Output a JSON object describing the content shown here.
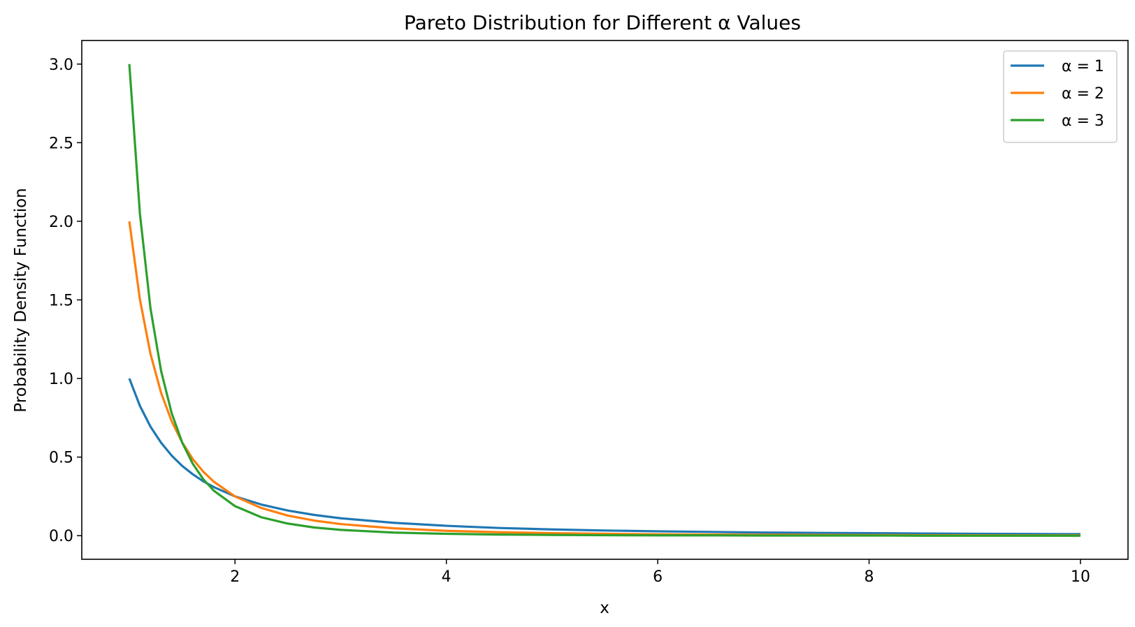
{
  "chart_data": {
    "type": "line",
    "title": "Pareto Distribution for Different α Values",
    "xlabel": "x",
    "ylabel": "Probability Density Function",
    "xlim": [
      0.55,
      10.45
    ],
    "ylim": [
      -0.15,
      3.15
    ],
    "x_ticks": [
      2,
      4,
      6,
      8,
      10
    ],
    "x_tick_labels": [
      "2",
      "4",
      "6",
      "8",
      "10"
    ],
    "y_ticks": [
      0.0,
      0.5,
      1.0,
      1.5,
      2.0,
      2.5,
      3.0
    ],
    "y_tick_labels": [
      "0.0",
      "0.5",
      "1.0",
      "1.5",
      "2.0",
      "2.5",
      "3.0"
    ],
    "grid": false,
    "legend_position": "top-right",
    "series": [
      {
        "name": "α = 1",
        "color": "#1f77b4",
        "x": [
          1.0,
          1.1,
          1.2,
          1.3,
          1.4,
          1.5,
          1.6,
          1.7,
          1.8,
          2.0,
          2.25,
          2.5,
          2.75,
          3.0,
          3.5,
          4.0,
          4.5,
          5.0,
          5.5,
          6.0,
          6.5,
          7.0,
          7.5,
          8.0,
          8.5,
          9.0,
          9.5,
          10.0
        ],
        "y": [
          1.0,
          0.826,
          0.694,
          0.592,
          0.51,
          0.444,
          0.391,
          0.346,
          0.309,
          0.25,
          0.198,
          0.16,
          0.132,
          0.111,
          0.082,
          0.063,
          0.049,
          0.04,
          0.033,
          0.028,
          0.024,
          0.02,
          0.018,
          0.016,
          0.014,
          0.012,
          0.011,
          0.01
        ]
      },
      {
        "name": "α = 2",
        "color": "#ff7f0e",
        "x": [
          1.0,
          1.1,
          1.2,
          1.3,
          1.4,
          1.5,
          1.6,
          1.7,
          1.8,
          2.0,
          2.25,
          2.5,
          2.75,
          3.0,
          3.5,
          4.0,
          4.5,
          5.0,
          5.5,
          6.0,
          6.5,
          7.0,
          7.5,
          8.0,
          8.5,
          9.0,
          9.5,
          10.0
        ],
        "y": [
          2.0,
          1.503,
          1.157,
          0.91,
          0.729,
          0.593,
          0.488,
          0.407,
          0.343,
          0.25,
          0.176,
          0.128,
          0.096,
          0.074,
          0.047,
          0.031,
          0.022,
          0.016,
          0.012,
          0.009,
          0.007,
          0.006,
          0.005,
          0.004,
          0.003,
          0.003,
          0.002,
          0.002
        ]
      },
      {
        "name": "α = 3",
        "color": "#2ca02c",
        "x": [
          1.0,
          1.1,
          1.2,
          1.3,
          1.4,
          1.5,
          1.6,
          1.7,
          1.8,
          2.0,
          2.25,
          2.5,
          2.75,
          3.0,
          3.5,
          4.0,
          4.5,
          5.0,
          5.5,
          6.0,
          6.5,
          7.0,
          7.5,
          8.0,
          8.5,
          9.0,
          9.5,
          10.0
        ],
        "y": [
          3.0,
          2.049,
          1.447,
          1.05,
          0.781,
          0.593,
          0.458,
          0.359,
          0.286,
          0.188,
          0.117,
          0.077,
          0.052,
          0.037,
          0.02,
          0.012,
          0.007,
          0.005,
          0.003,
          0.002,
          0.002,
          0.001,
          0.001,
          0.001,
          0.0,
          0.0,
          0.0,
          0.0
        ]
      }
    ]
  }
}
